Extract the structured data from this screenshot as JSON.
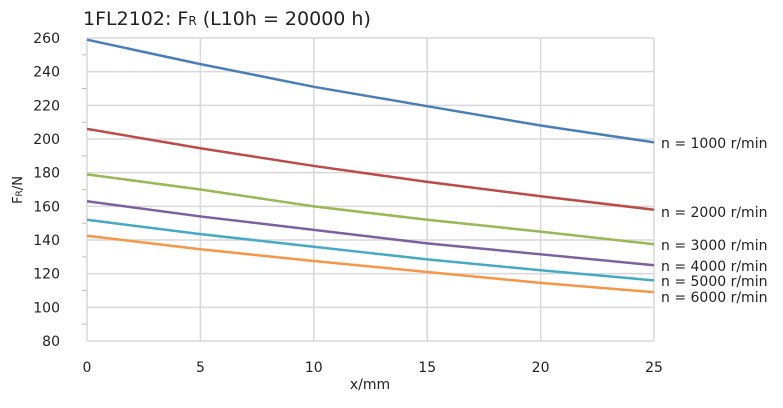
{
  "chart_data": {
    "type": "line",
    "title_main": "1FL2102: F",
    "title_sub": "R",
    "title_rest": " (L10h = 20000 h)",
    "xlabel": "x/mm",
    "ylabel_main": "F",
    "ylabel_sub": "R",
    "ylabel_rest": "/N",
    "xlim": [
      0,
      25
    ],
    "ylim": [
      80,
      260
    ],
    "xticks": [
      "0",
      "5",
      "10",
      "15",
      "20",
      "25"
    ],
    "yticks": [
      "80",
      "100",
      "120",
      "140",
      "160",
      "180",
      "200",
      "220",
      "240",
      "260"
    ],
    "grid": true,
    "legend": "line-end labels at right",
    "x": [
      0,
      5,
      10,
      15,
      20,
      25
    ],
    "series": [
      {
        "name": "n = 1000 r/min",
        "color": "#4a7ebb",
        "values": [
          259,
          244.5,
          231,
          219.5,
          208,
          198
        ]
      },
      {
        "name": "n = 2000 r/min",
        "color": "#be4b48",
        "values": [
          206,
          194.5,
          184,
          174.5,
          166,
          158
        ]
      },
      {
        "name": "n = 3000 r/min",
        "color": "#98b954",
        "values": [
          179,
          170,
          160,
          152,
          145,
          137.5
        ]
      },
      {
        "name": "n = 4000 r/min",
        "color": "#7d60a0",
        "values": [
          163,
          154,
          146,
          138,
          131.5,
          125
        ]
      },
      {
        "name": "n = 5000 r/min",
        "color": "#46aac5",
        "values": [
          152,
          143.5,
          136,
          128.5,
          122,
          116
        ]
      },
      {
        "name": "n = 6000 r/min",
        "color": "#f79646",
        "values": [
          142.5,
          134.5,
          127.5,
          121,
          114.5,
          109
        ]
      }
    ]
  }
}
